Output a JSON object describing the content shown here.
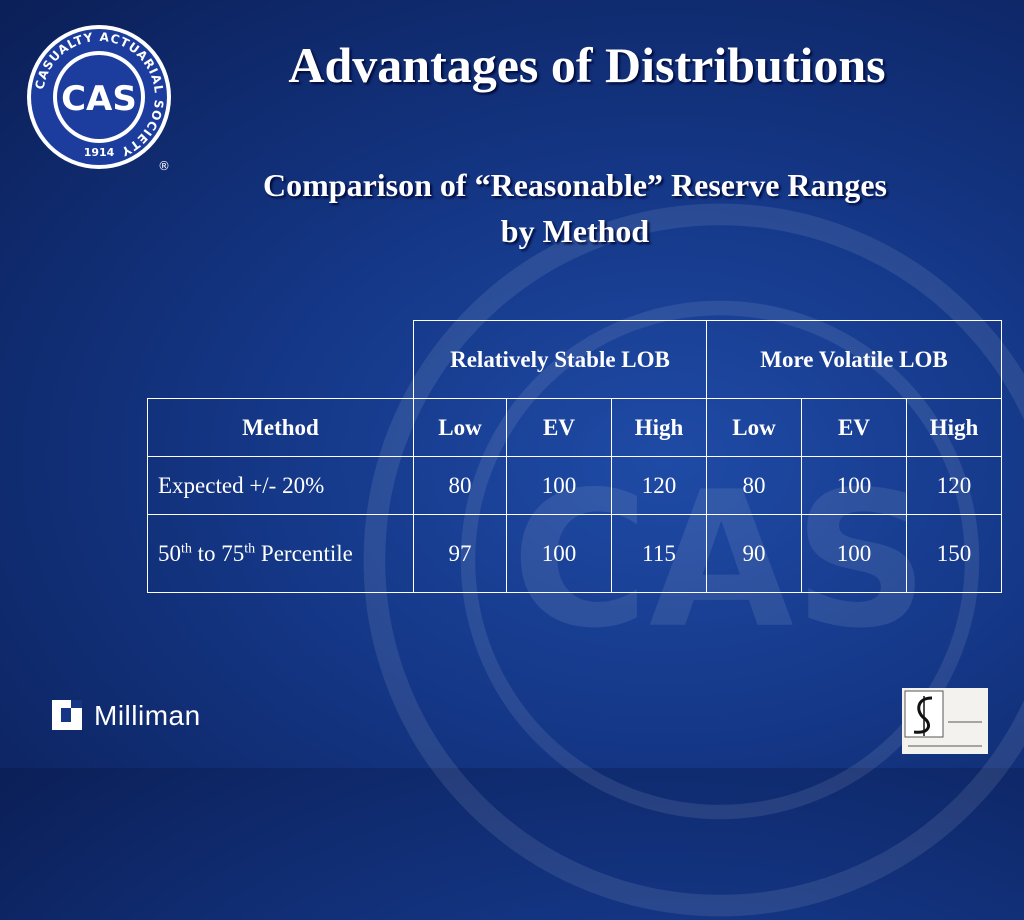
{
  "slide": {
    "title": "Advantages of Distributions",
    "subtitle_line1": "Comparison of “Reasonable” Reserve Ranges",
    "subtitle_line2": "by Method"
  },
  "logo": {
    "ring_text": "CASUALTY ACTUARIAL SOCIETY",
    "center_text": "CAS",
    "year": "1914",
    "mark": "®"
  },
  "table": {
    "groups": [
      "Relatively Stable LOB",
      "More Volatile LOB"
    ],
    "method_header": "Method",
    "sub_headers": [
      "Low",
      "EV",
      "High",
      "Low",
      "EV",
      "High"
    ],
    "rows": [
      {
        "label": "Expected +/- 20%",
        "values": [
          "80",
          "100",
          "120",
          "80",
          "100",
          "120"
        ]
      },
      {
        "label_num1": "50",
        "label_sup1": "th",
        "label_mid": " to 75",
        "label_sup2": "th",
        "label_end": " Percentile",
        "values": [
          "97",
          "100",
          "115",
          "90",
          "100",
          "150"
        ]
      }
    ]
  },
  "footer": {
    "brand": "Milliman"
  },
  "colors": {
    "background": "#143685",
    "text": "#ffffff",
    "logo_blue": "#1d3d9e"
  }
}
